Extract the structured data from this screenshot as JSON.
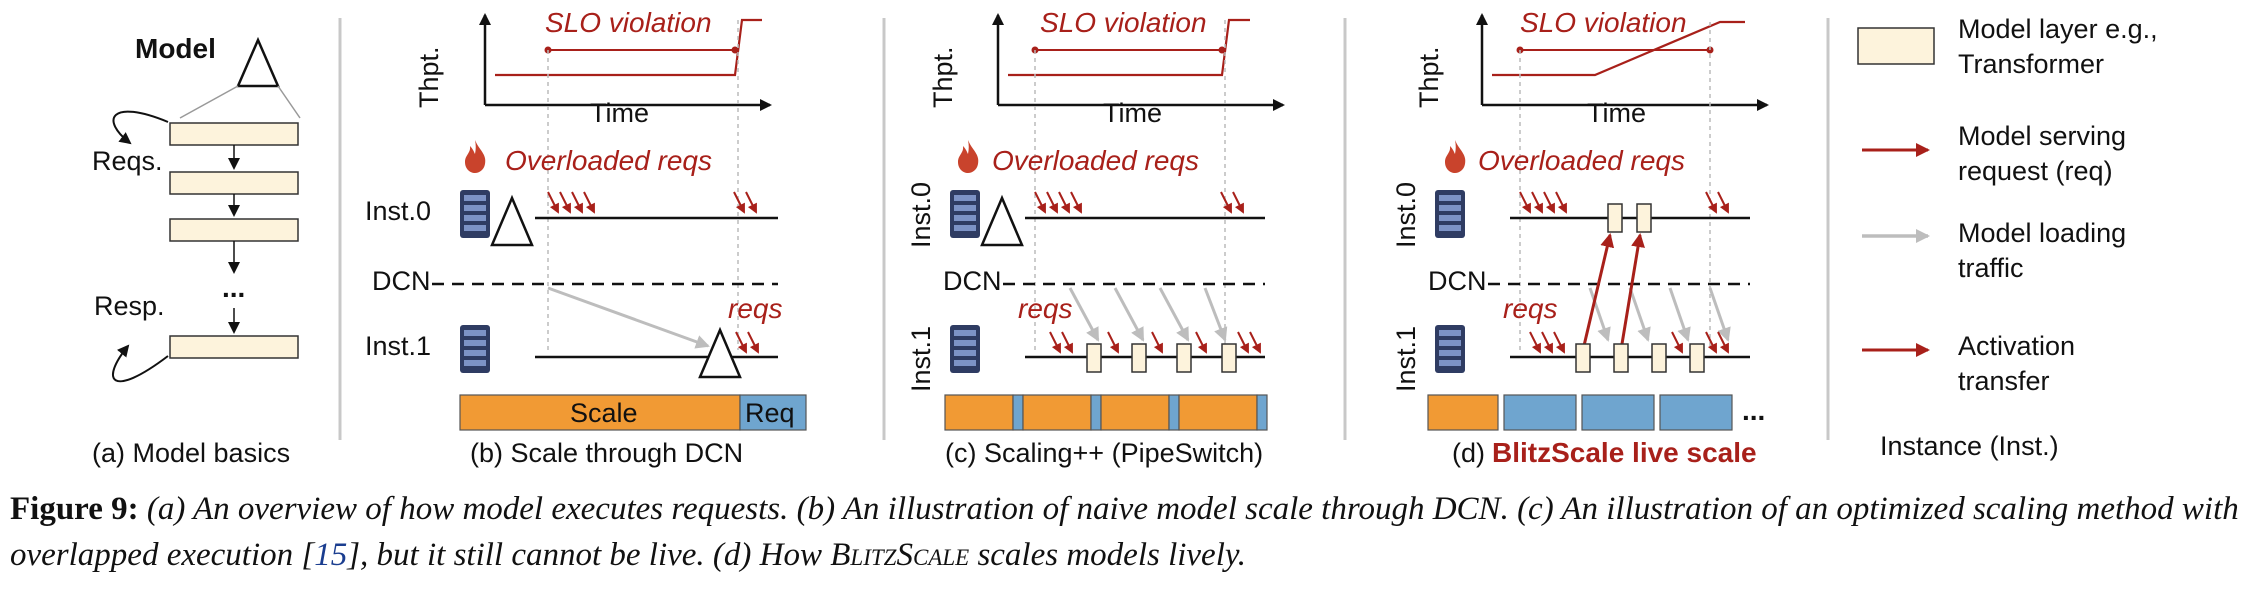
{
  "panel_a": {
    "model_label": "Model",
    "reqs_label": "Reqs.",
    "resp_label": "Resp.",
    "ellipsis": "...",
    "caption": "(a) Model basics"
  },
  "panel_b": {
    "thpt_label": "Thpt.",
    "time_label": "Time",
    "slo_label": "SLO violation",
    "overloaded_label": "Overloaded reqs",
    "inst0_label": "Inst.0",
    "dcn_label": "DCN",
    "inst1_label": "Inst.1",
    "reqs_label": "reqs",
    "bar_scale": "Scale",
    "bar_req": "Req",
    "caption": "(b) Scale through DCN"
  },
  "panel_c": {
    "thpt_label": "Thpt.",
    "time_label": "Time",
    "slo_label": "SLO violation",
    "overloaded_label": "Overloaded reqs",
    "inst0_label": "Inst.0",
    "dcn_label": "DCN",
    "inst1_label": "Inst.1",
    "reqs_label": "reqs",
    "caption": "(c) Scaling++ (PipeSwitch)"
  },
  "panel_d": {
    "thpt_label": "Thpt.",
    "time_label": "Time",
    "slo_label": "SLO violation",
    "overloaded_label": "Overloaded reqs",
    "inst0_label": "Inst.0",
    "dcn_label": "DCN",
    "inst1_label": "Inst.1",
    "reqs_label": "reqs",
    "bar_ellipsis": "...",
    "caption_prefix": "(d)",
    "caption_bold": "BlitzScale live scale"
  },
  "legend": {
    "layer_line1": "Model layer e.g.,",
    "layer_line2": "Transformer",
    "serving_line1": "Model serving",
    "serving_line2": "request (req)",
    "loading_line1": "Model loading",
    "loading_line2": "traffic",
    "activation_line1": "Activation",
    "activation_line2": "transfer",
    "instance_label": "Instance (Inst.)"
  },
  "caption": {
    "figure_label": "Figure 9:",
    "text_1": " (a) An overview of how model executes requests. (b) An illustration of naive model scale through DCN. (c) An illustration of an optimized scaling method with overlapped execution [",
    "cite": "15",
    "text_2": "], but it still cannot be live. (d) How ",
    "system_name": "BlitzScale",
    "text_3": " scales models lively."
  },
  "colors": {
    "red": "#a8201a",
    "orange": "#f19a34",
    "blue": "#6fa5cf",
    "layer_fill": "#fdf3dc",
    "gray_arrow": "#bdbdbd"
  }
}
